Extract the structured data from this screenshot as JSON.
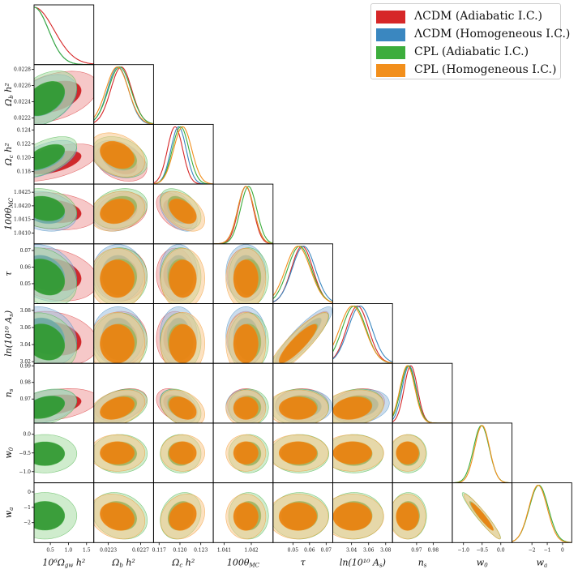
{
  "legend": [
    {
      "label": "ΛCDM (Adiabatic I.C.)",
      "color": "#d62728"
    },
    {
      "label": "ΛCDM (Homogeneous I.C.)",
      "color": "#3a87c0"
    },
    {
      "label": "CPL (Adiabatic I.C.)",
      "color": "#3cad3c"
    },
    {
      "label": "CPL (Homogeneous I.C.)",
      "color": "#f28f1c"
    }
  ],
  "chart_data": {
    "type": "triangle",
    "title": "",
    "series": [
      {
        "name": "ΛCDM (Adiabatic I.C.)",
        "color": "#d62728",
        "dark": "#cc2124",
        "light": "#ef9a9b",
        "params": [
          "gw",
          "ob",
          "oc",
          "th",
          "tau",
          "as",
          "ns"
        ],
        "mean": {
          "gw": 0.6,
          "ob": 0.02246,
          "oc": 0.1193,
          "th": 1.0418,
          "tau": 0.0555,
          "as": 3.047,
          "ns": 0.9665
        },
        "sd": {
          "gw": 0.55,
          "ob": 0.00013,
          "oc": 0.0011,
          "th": 0.00028,
          "tau": 0.0065,
          "as": 0.013,
          "ns": 0.004
        }
      },
      {
        "name": "ΛCDM (Homogeneous I.C.)",
        "color": "#3a87c0",
        "dark": "#2f6ea8",
        "light": "#9fc0df",
        "params": [
          "gw",
          "ob",
          "oc",
          "th",
          "tau",
          "as",
          "ns"
        ],
        "mean": {
          "gw": 0.35,
          "ob": 0.02242,
          "oc": 0.1198,
          "th": 1.0418,
          "tau": 0.0565,
          "as": 3.05,
          "ns": 0.9655
        },
        "sd": {
          "gw": 0.4,
          "ob": 0.00013,
          "oc": 0.0011,
          "th": 0.0003,
          "tau": 0.007,
          "as": 0.014,
          "ns": 0.0042
        }
      },
      {
        "name": "CPL (Adiabatic I.C.)",
        "color": "#3cad3c",
        "dark": "#339a33",
        "light": "#a8dca4",
        "params": [
          "gw",
          "ob",
          "oc",
          "th",
          "tau",
          "as",
          "ns",
          "w0",
          "wa"
        ],
        "mean": {
          "gw": 0.35,
          "ob": 0.02244,
          "oc": 0.1201,
          "th": 1.0419,
          "tau": 0.054,
          "as": 3.043,
          "ns": 0.965,
          "w0": -0.52,
          "wa": -1.55
        },
        "sd": {
          "gw": 0.4,
          "ob": 0.00014,
          "oc": 0.0012,
          "th": 0.0003,
          "tau": 0.0072,
          "as": 0.014,
          "ns": 0.0045,
          "w0": 0.21,
          "wa": 0.62
        }
      },
      {
        "name": "CPL (Homogeneous I.C.)",
        "color": "#f28f1c",
        "dark": "#ea8412",
        "light": "#f9c98d",
        "params": [
          "ob",
          "oc",
          "th",
          "tau",
          "as",
          "ns",
          "w0",
          "wa"
        ],
        "mean": {
          "ob": 0.02241,
          "oc": 0.1204,
          "th": 1.0418,
          "tau": 0.053,
          "as": 3.041,
          "ns": 0.9645,
          "w0": -0.5,
          "wa": -1.6
        },
        "sd": {
          "ob": 0.00014,
          "oc": 0.0013,
          "th": 0.0003,
          "tau": 0.0075,
          "as": 0.015,
          "ns": 0.0045,
          "w0": 0.2,
          "wa": 0.6
        }
      }
    ],
    "axes": {
      "gw": {
        "label": "10⁶Ω_gw h²",
        "range": [
          0.05,
          1.7
        ],
        "ticks": [
          0.5,
          1.0,
          1.5
        ],
        "tick_labels": [
          "0.5",
          "1.0",
          "1.5"
        ]
      },
      "ob": {
        "label": "Ω_b h²",
        "range": [
          0.02212,
          0.02286
        ],
        "ticks": [
          0.0222,
          0.0224,
          0.0226,
          0.0228
        ],
        "tick_labels": [
          "0.0222",
          "0.0224",
          "0.0226",
          "0.0228"
        ],
        "x_ticks": [
          0.0223,
          0.0227
        ],
        "x_tick_labels": [
          "0.0223",
          "0.0227"
        ]
      },
      "oc": {
        "label": "Ω_c h²",
        "range": [
          0.1162,
          0.1248
        ],
        "ticks": [
          0.118,
          0.12,
          0.122,
          0.124
        ],
        "tick_labels": [
          "0.118",
          "0.120",
          "0.122",
          "0.124"
        ],
        "x_ticks": [
          0.117,
          0.12,
          0.123
        ],
        "x_tick_labels": [
          "0.117",
          "0.120",
          "0.123"
        ]
      },
      "th": {
        "label": "100θ_MC",
        "range": [
          1.0406,
          1.0428
        ],
        "ticks": [
          1.041,
          1.0415,
          1.042,
          1.0425
        ],
        "tick_labels": [
          "1.0410",
          "1.0415",
          "1.0420",
          "1.0425"
        ],
        "x_ticks": [
          1.041,
          1.042
        ],
        "x_tick_labels": [
          "1.041",
          "1.042"
        ]
      },
      "tau": {
        "label": "τ",
        "range": [
          0.038,
          0.074
        ],
        "ticks": [
          0.05,
          0.06,
          0.07
        ],
        "tick_labels": [
          "0.05",
          "0.06",
          "0.07"
        ],
        "x_ticks": [
          0.05,
          0.06,
          0.07
        ],
        "x_tick_labels": [
          "0.05",
          "0.06",
          "0.07"
        ]
      },
      "as": {
        "label": "ln(10¹⁰ A_s)",
        "range": [
          3.018,
          3.088
        ],
        "ticks": [
          3.02,
          3.04,
          3.06,
          3.08
        ],
        "tick_labels": [
          "3.02",
          "3.04",
          "3.06",
          "3.08"
        ],
        "x_ticks": [
          3.04,
          3.06,
          3.08
        ],
        "x_tick_labels": [
          "3.04",
          "3.06",
          "3.08"
        ]
      },
      "ns": {
        "label": "n_s",
        "range": [
          0.9555,
          0.9915
        ],
        "ticks": [
          0.97,
          0.98,
          0.99
        ],
        "tick_labels": [
          "0.97",
          "0.98",
          "0.99"
        ],
        "x_ticks": [
          0.97,
          0.98
        ],
        "x_tick_labels": [
          "0.97",
          "0.98"
        ]
      },
      "w0": {
        "label": "w_0",
        "range": [
          -1.3,
          0.3
        ],
        "ticks": [
          -1.0,
          -0.5,
          0.0
        ],
        "tick_labels": [
          "−1.0",
          "−0.5",
          "0.0"
        ],
        "x_ticks": [
          -1.0,
          -0.5,
          0.0
        ],
        "x_tick_labels": [
          "−1.0",
          "−0.5",
          "0.0"
        ]
      },
      "wa": {
        "label": "w_a",
        "range": [
          -3.3,
          0.6
        ],
        "ticks": [
          -2,
          -1,
          0
        ],
        "tick_labels": [
          "−2",
          "−1",
          "0"
        ],
        "x_ticks": [
          -2,
          -1,
          0
        ],
        "x_tick_labels": [
          "−2",
          "−1",
          "0"
        ]
      }
    },
    "order": [
      "gw",
      "ob",
      "oc",
      "th",
      "tau",
      "as",
      "ns",
      "w0",
      "wa"
    ],
    "correlations": [
      {
        "a": "gw",
        "b": "ob",
        "r": 0.4
      },
      {
        "a": "gw",
        "b": "oc",
        "r": 0.55
      },
      {
        "a": "gw",
        "b": "th",
        "r": -0.2
      },
      {
        "a": "gw",
        "b": "tau",
        "r": -0.25
      },
      {
        "a": "gw",
        "b": "as",
        "r": -0.2
      },
      {
        "a": "gw",
        "b": "ns",
        "r": 0.35
      },
      {
        "a": "ob",
        "b": "oc",
        "r": -0.3
      },
      {
        "a": "ob",
        "b": "th",
        "r": 0.2
      },
      {
        "a": "ob",
        "b": "ns",
        "r": 0.35
      },
      {
        "a": "oc",
        "b": "th",
        "r": -0.45
      },
      {
        "a": "oc",
        "b": "ns",
        "r": -0.35
      },
      {
        "a": "tau",
        "b": "as",
        "r": 0.88
      },
      {
        "a": "as",
        "b": "ns",
        "r": 0.2
      },
      {
        "a": "w0",
        "b": "wa",
        "r": -0.95
      },
      {
        "a": "ob",
        "b": "wa",
        "r": -0.2
      },
      {
        "a": "oc",
        "b": "wa",
        "r": 0.2
      }
    ]
  }
}
